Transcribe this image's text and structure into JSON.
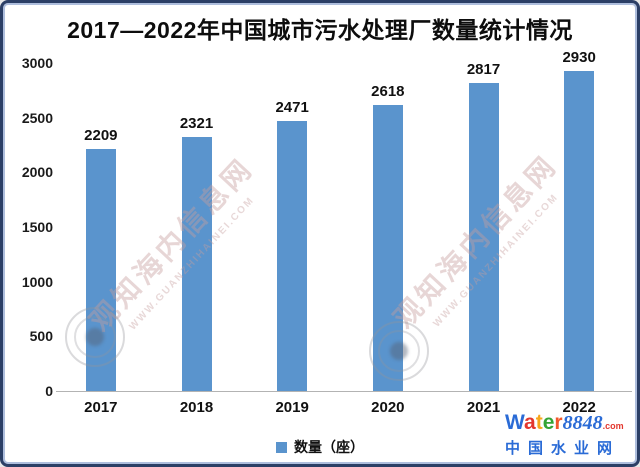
{
  "title": "2017—2022年中国城市污水处理厂数量统计情况",
  "chart_data": {
    "type": "bar",
    "title": "2017—2022年中国城市污水处理厂数量统计情况",
    "categories": [
      "2017",
      "2018",
      "2019",
      "2020",
      "2021",
      "2022"
    ],
    "values": [
      2209,
      2321,
      2471,
      2618,
      2817,
      2930
    ],
    "series": [
      {
        "name": "数量（座）",
        "values": [
          2209,
          2321,
          2471,
          2618,
          2817,
          2930
        ]
      }
    ],
    "xlabel": "",
    "ylabel": "",
    "ylim": [
      0,
      3000
    ],
    "yticks": [
      0,
      500,
      1000,
      1500,
      2000,
      2500,
      3000
    ],
    "grid": false,
    "data_labels": true,
    "legend_position": "bottom-center",
    "bar_color": "#5A94CD"
  },
  "legend": {
    "label": "数量（座）",
    "swatch_color": "#5A94CD"
  },
  "watermark": {
    "text": "观知海内信息网",
    "url": "WWW.GUANZHIHAINEI.COM",
    "emblem": "concentric-circle-stamp"
  },
  "logo": {
    "brand_letters": [
      {
        "ch": "W",
        "color": "#2a6bd6"
      },
      {
        "ch": "a",
        "color": "#e3372e"
      },
      {
        "ch": "t",
        "color": "#f7a61b"
      },
      {
        "ch": "e",
        "color": "#35a436"
      },
      {
        "ch": "r",
        "color": "#f2572a"
      }
    ],
    "number": "8848",
    "number_color": "#2a6bd6",
    "tld": ".com",
    "tld_color": "#e3372e",
    "subtitle": "中国水业网",
    "subtitle_color": "#2a6bd6"
  },
  "colors": {
    "frame_border": "#2c3f66",
    "bar": "#5A94CD",
    "axis_line": "#b3b3b3",
    "text": "#111111",
    "watermark": "#c69e9e"
  }
}
